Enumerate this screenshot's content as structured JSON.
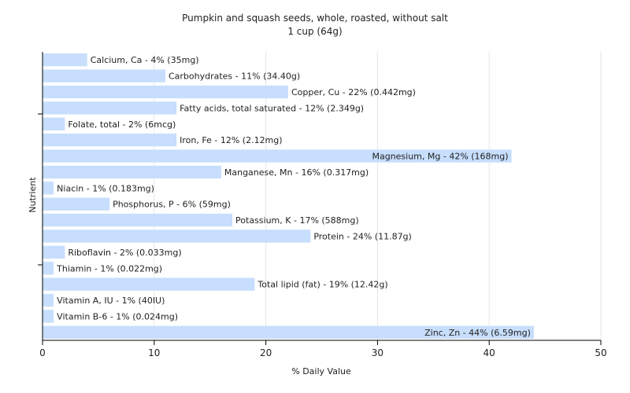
{
  "chart_data": {
    "type": "bar",
    "orientation": "horizontal",
    "title": "Pumpkin and squash seeds, whole, roasted, without salt",
    "subtitle": "1 cup (64g)",
    "xlabel": "% Daily Value",
    "ylabel": "Nutrient",
    "xlim": [
      0,
      50
    ],
    "xticks": [
      0,
      10,
      20,
      30,
      40,
      50
    ],
    "grid": "vertical",
    "bar_color": "#c7defc",
    "categories": [
      "Calcium, Ca",
      "Carbohydrates",
      "Copper, Cu",
      "Fatty acids, total saturated",
      "Folate, total",
      "Iron, Fe",
      "Magnesium, Mg",
      "Manganese, Mn",
      "Niacin",
      "Phosphorus, P",
      "Potassium, K",
      "Protein",
      "Riboflavin",
      "Thiamin",
      "Total lipid (fat)",
      "Vitamin A, IU",
      "Vitamin B-6",
      "Zinc, Zn"
    ],
    "values": [
      4,
      11,
      22,
      12,
      2,
      12,
      42,
      16,
      1,
      6,
      17,
      24,
      2,
      1,
      19,
      1,
      1,
      44
    ],
    "labels": [
      "Calcium, Ca - 4% (35mg)",
      "Carbohydrates - 11% (34.40g)",
      "Copper, Cu - 22% (0.442mg)",
      "Fatty acids, total saturated - 12% (2.349g)",
      "Folate, total - 2% (6mcg)",
      "Iron, Fe - 12% (2.12mg)",
      "Magnesium, Mg - 42% (168mg)",
      "Manganese, Mn - 16% (0.317mg)",
      "Niacin - 1% (0.183mg)",
      "Phosphorus, P - 6% (59mg)",
      "Potassium, K - 17% (588mg)",
      "Protein - 24% (11.87g)",
      "Riboflavin - 2% (0.033mg)",
      "Thiamin - 1% (0.022mg)",
      "Total lipid (fat) - 19% (12.42g)",
      "Vitamin A, IU - 1% (40IU)",
      "Vitamin B-6 - 1% (0.024mg)",
      "Zinc, Zn - 44% (6.59mg)"
    ]
  }
}
